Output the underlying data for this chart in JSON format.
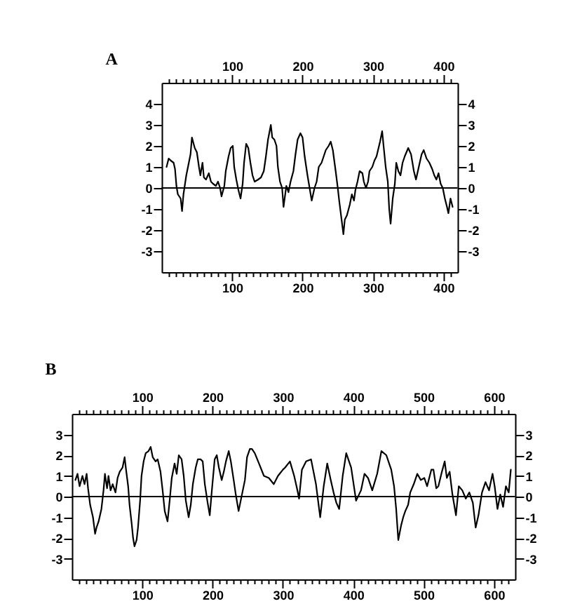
{
  "chart_data": [
    {
      "type": "line",
      "title": "A",
      "grid": false,
      "xlim": [
        0,
        420
      ],
      "xticks": [
        {
          "value": 10,
          "label": null
        },
        {
          "value": 20,
          "label": null
        },
        {
          "value": 30,
          "label": null
        },
        {
          "value": 40,
          "label": null
        },
        {
          "value": 50,
          "label": null
        },
        {
          "value": 60,
          "label": null
        },
        {
          "value": 70,
          "label": null
        },
        {
          "value": 80,
          "label": null
        },
        {
          "value": 90,
          "label": null
        },
        100,
        {
          "value": 110,
          "label": null
        },
        {
          "value": 120,
          "label": null
        },
        {
          "value": 130,
          "label": null
        },
        {
          "value": 140,
          "label": null
        },
        {
          "value": 150,
          "label": null
        },
        {
          "value": 160,
          "label": null
        },
        {
          "value": 170,
          "label": null
        },
        {
          "value": 180,
          "label": null
        },
        {
          "value": 190,
          "label": null
        },
        200,
        {
          "value": 210,
          "label": null
        },
        {
          "value": 220,
          "label": null
        },
        {
          "value": 230,
          "label": null
        },
        {
          "value": 240,
          "label": null
        },
        {
          "value": 250,
          "label": null
        },
        {
          "value": 260,
          "label": null
        },
        {
          "value": 270,
          "label": null
        },
        {
          "value": 280,
          "label": null
        },
        {
          "value": 290,
          "label": null
        },
        300,
        {
          "value": 310,
          "label": null
        },
        {
          "value": 320,
          "label": null
        },
        {
          "value": 330,
          "label": null
        },
        {
          "value": 340,
          "label": null
        },
        {
          "value": 350,
          "label": null
        },
        {
          "value": 360,
          "label": null
        },
        {
          "value": 370,
          "label": null
        },
        {
          "value": 380,
          "label": null
        },
        {
          "value": 390,
          "label": null
        },
        400,
        {
          "value": 410,
          "label": null
        }
      ],
      "x2lim": [
        0,
        420
      ],
      "x2ticks": [
        {
          "value": 10,
          "label": null
        },
        {
          "value": 20,
          "label": null
        },
        {
          "value": 30,
          "label": null
        },
        {
          "value": 40,
          "label": null
        },
        {
          "value": 50,
          "label": null
        },
        {
          "value": 60,
          "label": null
        },
        {
          "value": 70,
          "label": null
        },
        {
          "value": 80,
          "label": null
        },
        {
          "value": 90,
          "label": null
        },
        100,
        {
          "value": 110,
          "label": null
        },
        {
          "value": 120,
          "label": null
        },
        {
          "value": 130,
          "label": null
        },
        {
          "value": 140,
          "label": null
        },
        {
          "value": 150,
          "label": null
        },
        {
          "value": 160,
          "label": null
        },
        {
          "value": 170,
          "label": null
        },
        {
          "value": 180,
          "label": null
        },
        {
          "value": 190,
          "label": null
        },
        200,
        {
          "value": 210,
          "label": null
        },
        {
          "value": 220,
          "label": null
        },
        {
          "value": 230,
          "label": null
        },
        {
          "value": 240,
          "label": null
        },
        {
          "value": 250,
          "label": null
        },
        {
          "value": 260,
          "label": null
        },
        {
          "value": 270,
          "label": null
        },
        {
          "value": 280,
          "label": null
        },
        {
          "value": 290,
          "label": null
        },
        300,
        {
          "value": 310,
          "label": null
        },
        {
          "value": 320,
          "label": null
        },
        {
          "value": 330,
          "label": null
        },
        {
          "value": 340,
          "label": null
        },
        {
          "value": 350,
          "label": null
        },
        {
          "value": 360,
          "label": null
        },
        {
          "value": 370,
          "label": null
        },
        {
          "value": 380,
          "label": null
        },
        {
          "value": 390,
          "label": null
        },
        400,
        {
          "value": 410,
          "label": null
        }
      ],
      "ylim": [
        -4,
        5
      ],
      "yticks": [
        -3,
        -2,
        -1,
        0,
        1,
        2,
        3,
        4
      ],
      "y2lim": [
        -4,
        5
      ],
      "y2ticks": [
        -3,
        -2,
        -1,
        0,
        1,
        2,
        3,
        4
      ],
      "ref_lines": [
        {
          "axis": "y",
          "value": 0
        }
      ],
      "series": [
        {
          "color": "#000000",
          "x": [
            7,
            10,
            13,
            17,
            19,
            21,
            23,
            27,
            29,
            31,
            35,
            38,
            41,
            43,
            47,
            50,
            53,
            55,
            58,
            60,
            63,
            67,
            70,
            73,
            77,
            80,
            83,
            85,
            89,
            91,
            95,
            98,
            101,
            103,
            106,
            109,
            112,
            115,
            117,
            120,
            123,
            126,
            129,
            132,
            137,
            141,
            145,
            148,
            151,
            155,
            157,
            160,
            163,
            165,
            168,
            171,
            173,
            177,
            180,
            183,
            187,
            190,
            193,
            197,
            200,
            203,
            207,
            210,
            213,
            217,
            220,
            223,
            227,
            230,
            233,
            237,
            240,
            243,
            247,
            250,
            252,
            255,
            258,
            260,
            263,
            267,
            270,
            273,
            275,
            278,
            281,
            285,
            287,
            290,
            293,
            295,
            299,
            302,
            305,
            310,
            313,
            315,
            318,
            321,
            323,
            325,
            328,
            331,
            333,
            336,
            339,
            342,
            345,
            350,
            354,
            358,
            361,
            365,
            369,
            372,
            376,
            380,
            384,
            387,
            390,
            393,
            396,
            399,
            402,
            405,
            407,
            410,
            413
          ],
          "values": [
            1.0,
            1.4,
            1.3,
            1.2,
            0.9,
            0.1,
            -0.3,
            -0.5,
            -1.1,
            -0.3,
            0.6,
            1.1,
            1.6,
            2.4,
            1.9,
            1.7,
            1.0,
            0.6,
            1.2,
            0.5,
            0.4,
            0.7,
            0.3,
            0.2,
            0.1,
            0.3,
            0.0,
            -0.4,
            0.1,
            0.8,
            1.5,
            1.9,
            2.0,
            1.0,
            0.4,
            -0.1,
            -0.5,
            0.2,
            1.2,
            2.1,
            1.9,
            1.2,
            0.6,
            0.3,
            0.4,
            0.5,
            0.8,
            1.5,
            2.3,
            3.0,
            2.4,
            2.3,
            2.0,
            1.0,
            0.3,
            0.0,
            -0.9,
            0.1,
            -0.2,
            0.3,
            0.8,
            1.6,
            2.3,
            2.6,
            2.4,
            1.5,
            0.6,
            0.0,
            -0.6,
            0.0,
            0.3,
            1.0,
            1.2,
            1.5,
            1.8,
            2.0,
            2.2,
            1.8,
            0.8,
            0.0,
            -0.6,
            -1.4,
            -2.2,
            -1.5,
            -1.3,
            -0.8,
            -0.3,
            -0.6,
            -0.1,
            0.3,
            0.8,
            0.7,
            0.3,
            0.0,
            0.3,
            0.8,
            1.0,
            1.3,
            1.5,
            2.2,
            2.7,
            2.0,
            1.0,
            0.3,
            -1.0,
            -1.7,
            -0.5,
            0.2,
            1.2,
            0.8,
            0.6,
            1.2,
            1.5,
            1.9,
            1.6,
            0.8,
            0.4,
            1.0,
            1.6,
            1.8,
            1.4,
            1.2,
            0.9,
            0.6,
            0.4,
            0.7,
            0.2,
            0.0,
            -0.5,
            -0.9,
            -1.2,
            -0.5,
            -0.9
          ]
        }
      ]
    },
    {
      "type": "line",
      "title": "B",
      "grid": false,
      "xlim": [
        0,
        630
      ],
      "xticks": [
        {
          "value": 10,
          "label": null
        },
        {
          "value": 20,
          "label": null
        },
        {
          "value": 30,
          "label": null
        },
        {
          "value": 40,
          "label": null
        },
        {
          "value": 50,
          "label": null
        },
        {
          "value": 60,
          "label": null
        },
        {
          "value": 70,
          "label": null
        },
        {
          "value": 80,
          "label": null
        },
        {
          "value": 90,
          "label": null
        },
        100,
        {
          "value": 110,
          "label": null
        },
        {
          "value": 120,
          "label": null
        },
        {
          "value": 130,
          "label": null
        },
        {
          "value": 140,
          "label": null
        },
        {
          "value": 150,
          "label": null
        },
        {
          "value": 160,
          "label": null
        },
        {
          "value": 170,
          "label": null
        },
        {
          "value": 180,
          "label": null
        },
        {
          "value": 190,
          "label": null
        },
        200,
        {
          "value": 210,
          "label": null
        },
        {
          "value": 220,
          "label": null
        },
        {
          "value": 230,
          "label": null
        },
        {
          "value": 240,
          "label": null
        },
        {
          "value": 250,
          "label": null
        },
        {
          "value": 260,
          "label": null
        },
        {
          "value": 270,
          "label": null
        },
        {
          "value": 280,
          "label": null
        },
        {
          "value": 290,
          "label": null
        },
        300,
        {
          "value": 310,
          "label": null
        },
        {
          "value": 320,
          "label": null
        },
        {
          "value": 330,
          "label": null
        },
        {
          "value": 340,
          "label": null
        },
        {
          "value": 350,
          "label": null
        },
        {
          "value": 360,
          "label": null
        },
        {
          "value": 370,
          "label": null
        },
        {
          "value": 380,
          "label": null
        },
        {
          "value": 390,
          "label": null
        },
        400,
        {
          "value": 410,
          "label": null
        },
        {
          "value": 420,
          "label": null
        },
        {
          "value": 430,
          "label": null
        },
        {
          "value": 440,
          "label": null
        },
        {
          "value": 450,
          "label": null
        },
        {
          "value": 460,
          "label": null
        },
        {
          "value": 470,
          "label": null
        },
        {
          "value": 480,
          "label": null
        },
        {
          "value": 490,
          "label": null
        },
        500,
        {
          "value": 510,
          "label": null
        },
        {
          "value": 520,
          "label": null
        },
        {
          "value": 530,
          "label": null
        },
        {
          "value": 540,
          "label": null
        },
        {
          "value": 550,
          "label": null
        },
        {
          "value": 560,
          "label": null
        },
        {
          "value": 570,
          "label": null
        },
        {
          "value": 580,
          "label": null
        },
        {
          "value": 590,
          "label": null
        },
        600,
        {
          "value": 610,
          "label": null
        },
        {
          "value": 620,
          "label": null
        }
      ],
      "x2lim": [
        0,
        630
      ],
      "x2ticks": [
        {
          "value": 10,
          "label": null
        },
        {
          "value": 20,
          "label": null
        },
        {
          "value": 30,
          "label": null
        },
        {
          "value": 40,
          "label": null
        },
        {
          "value": 50,
          "label": null
        },
        {
          "value": 60,
          "label": null
        },
        {
          "value": 70,
          "label": null
        },
        {
          "value": 80,
          "label": null
        },
        {
          "value": 90,
          "label": null
        },
        100,
        {
          "value": 110,
          "label": null
        },
        {
          "value": 120,
          "label": null
        },
        {
          "value": 130,
          "label": null
        },
        {
          "value": 140,
          "label": null
        },
        {
          "value": 150,
          "label": null
        },
        {
          "value": 160,
          "label": null
        },
        {
          "value": 170,
          "label": null
        },
        {
          "value": 180,
          "label": null
        },
        {
          "value": 190,
          "label": null
        },
        200,
        {
          "value": 210,
          "label": null
        },
        {
          "value": 220,
          "label": null
        },
        {
          "value": 230,
          "label": null
        },
        {
          "value": 240,
          "label": null
        },
        {
          "value": 250,
          "label": null
        },
        {
          "value": 260,
          "label": null
        },
        {
          "value": 270,
          "label": null
        },
        {
          "value": 280,
          "label": null
        },
        {
          "value": 290,
          "label": null
        },
        300,
        {
          "value": 310,
          "label": null
        },
        {
          "value": 320,
          "label": null
        },
        {
          "value": 330,
          "label": null
        },
        {
          "value": 340,
          "label": null
        },
        {
          "value": 350,
          "label": null
        },
        {
          "value": 360,
          "label": null
        },
        {
          "value": 370,
          "label": null
        },
        {
          "value": 380,
          "label": null
        },
        {
          "value": 390,
          "label": null
        },
        400,
        {
          "value": 410,
          "label": null
        },
        {
          "value": 420,
          "label": null
        },
        {
          "value": 430,
          "label": null
        },
        {
          "value": 440,
          "label": null
        },
        {
          "value": 450,
          "label": null
        },
        {
          "value": 460,
          "label": null
        },
        {
          "value": 470,
          "label": null
        },
        {
          "value": 480,
          "label": null
        },
        {
          "value": 490,
          "label": null
        },
        500,
        {
          "value": 510,
          "label": null
        },
        {
          "value": 520,
          "label": null
        },
        {
          "value": 530,
          "label": null
        },
        {
          "value": 540,
          "label": null
        },
        {
          "value": 550,
          "label": null
        },
        {
          "value": 560,
          "label": null
        },
        {
          "value": 570,
          "label": null
        },
        {
          "value": 580,
          "label": null
        },
        {
          "value": 590,
          "label": null
        },
        600,
        {
          "value": 610,
          "label": null
        },
        {
          "value": 620,
          "label": null
        }
      ],
      "ylim": [
        -4,
        4
      ],
      "yticks": [
        -3,
        -2,
        -1,
        0,
        1,
        2,
        3
      ],
      "y2lim": [
        -4,
        4
      ],
      "y2ticks": [
        -3,
        -2,
        -1,
        0,
        1,
        2,
        3
      ],
      "ref_lines": [
        {
          "axis": "y",
          "value": 0
        }
      ],
      "series": [
        {
          "color": "#000000",
          "x": [
            5,
            8,
            11,
            15,
            18,
            21,
            23,
            26,
            30,
            33,
            35,
            38,
            42,
            45,
            47,
            50,
            52,
            55,
            58,
            62,
            65,
            68,
            72,
            75,
            77,
            80,
            82,
            85,
            87,
            89,
            92,
            94,
            97,
            99,
            102,
            105,
            109,
            112,
            115,
            119,
            122,
            126,
            129,
            132,
            136,
            139,
            142,
            146,
            149,
            152,
            156,
            159,
            162,
            166,
            169,
            172,
            176,
            179,
            183,
            186,
            189,
            193,
            196,
            199,
            203,
            206,
            209,
            213,
            216,
            219,
            223,
            226,
            230,
            233,
            237,
            240,
            243,
            246,
            249,
            253,
            256,
            260,
            266,
            273,
            280,
            287,
            293,
            300,
            303,
            310,
            316,
            320,
            323,
            327,
            333,
            340,
            347,
            353,
            358,
            363,
            368,
            372,
            376,
            380,
            385,
            390,
            397,
            404,
            411,
            416,
            421,
            427,
            434,
            440,
            447,
            454,
            458,
            461,
            464,
            468,
            471,
            474,
            478,
            481,
            486,
            491,
            496,
            501,
            505,
            511,
            514,
            518,
            521,
            526,
            530,
            533,
            537,
            541,
            546,
            550,
            555,
            560,
            565,
            570,
            574,
            578,
            583,
            588,
            593,
            598,
            601,
            605,
            609,
            613,
            617,
            621,
            624
          ],
          "values": [
            0.8,
            1.1,
            0.5,
            1.0,
            0.6,
            1.1,
            0.4,
            -0.4,
            -1.0,
            -1.8,
            -1.5,
            -1.2,
            -0.6,
            0.3,
            1.1,
            0.4,
            1.0,
            0.3,
            0.6,
            0.2,
            0.9,
            1.2,
            1.4,
            1.9,
            1.3,
            0.5,
            -0.4,
            -1.3,
            -2.0,
            -2.4,
            -2.1,
            -1.5,
            -0.2,
            1.0,
            1.7,
            2.1,
            2.2,
            2.4,
            1.9,
            1.7,
            1.8,
            1.2,
            0.3,
            -0.7,
            -1.2,
            -0.2,
            0.9,
            1.6,
            1.1,
            2.0,
            1.8,
            1.0,
            -0.2,
            -1.0,
            -0.4,
            0.6,
            1.4,
            1.8,
            1.8,
            1.7,
            0.6,
            -0.3,
            -0.9,
            0.3,
            1.8,
            2.0,
            1.4,
            0.8,
            1.2,
            1.7,
            2.2,
            1.7,
            0.8,
            0.1,
            -0.7,
            -0.2,
            0.3,
            0.8,
            1.9,
            2.3,
            2.3,
            2.1,
            1.6,
            1.0,
            0.9,
            0.6,
            1.0,
            1.3,
            1.4,
            1.7,
            1.0,
            0.4,
            -0.1,
            1.3,
            1.7,
            1.8,
            0.6,
            -1.0,
            0.5,
            1.6,
            0.8,
            0.2,
            -0.3,
            -0.6,
            1.0,
            2.1,
            1.4,
            -0.2,
            0.3,
            1.1,
            0.9,
            0.3,
            1.1,
            2.2,
            2.0,
            1.3,
            0.5,
            -0.6,
            -2.1,
            -1.4,
            -1.0,
            -0.7,
            -0.4,
            0.2,
            0.6,
            1.1,
            0.8,
            0.9,
            0.5,
            1.3,
            1.3,
            0.4,
            0.5,
            1.2,
            1.7,
            0.9,
            1.2,
            0.1,
            -0.9,
            0.5,
            0.3,
            -0.1,
            0.2,
            -0.3,
            -1.5,
            -0.9,
            0.2,
            0.7,
            0.3,
            1.1,
            0.5,
            -0.6,
            0.1,
            -0.5,
            0.5,
            0.2,
            1.3
          ]
        }
      ]
    }
  ]
}
